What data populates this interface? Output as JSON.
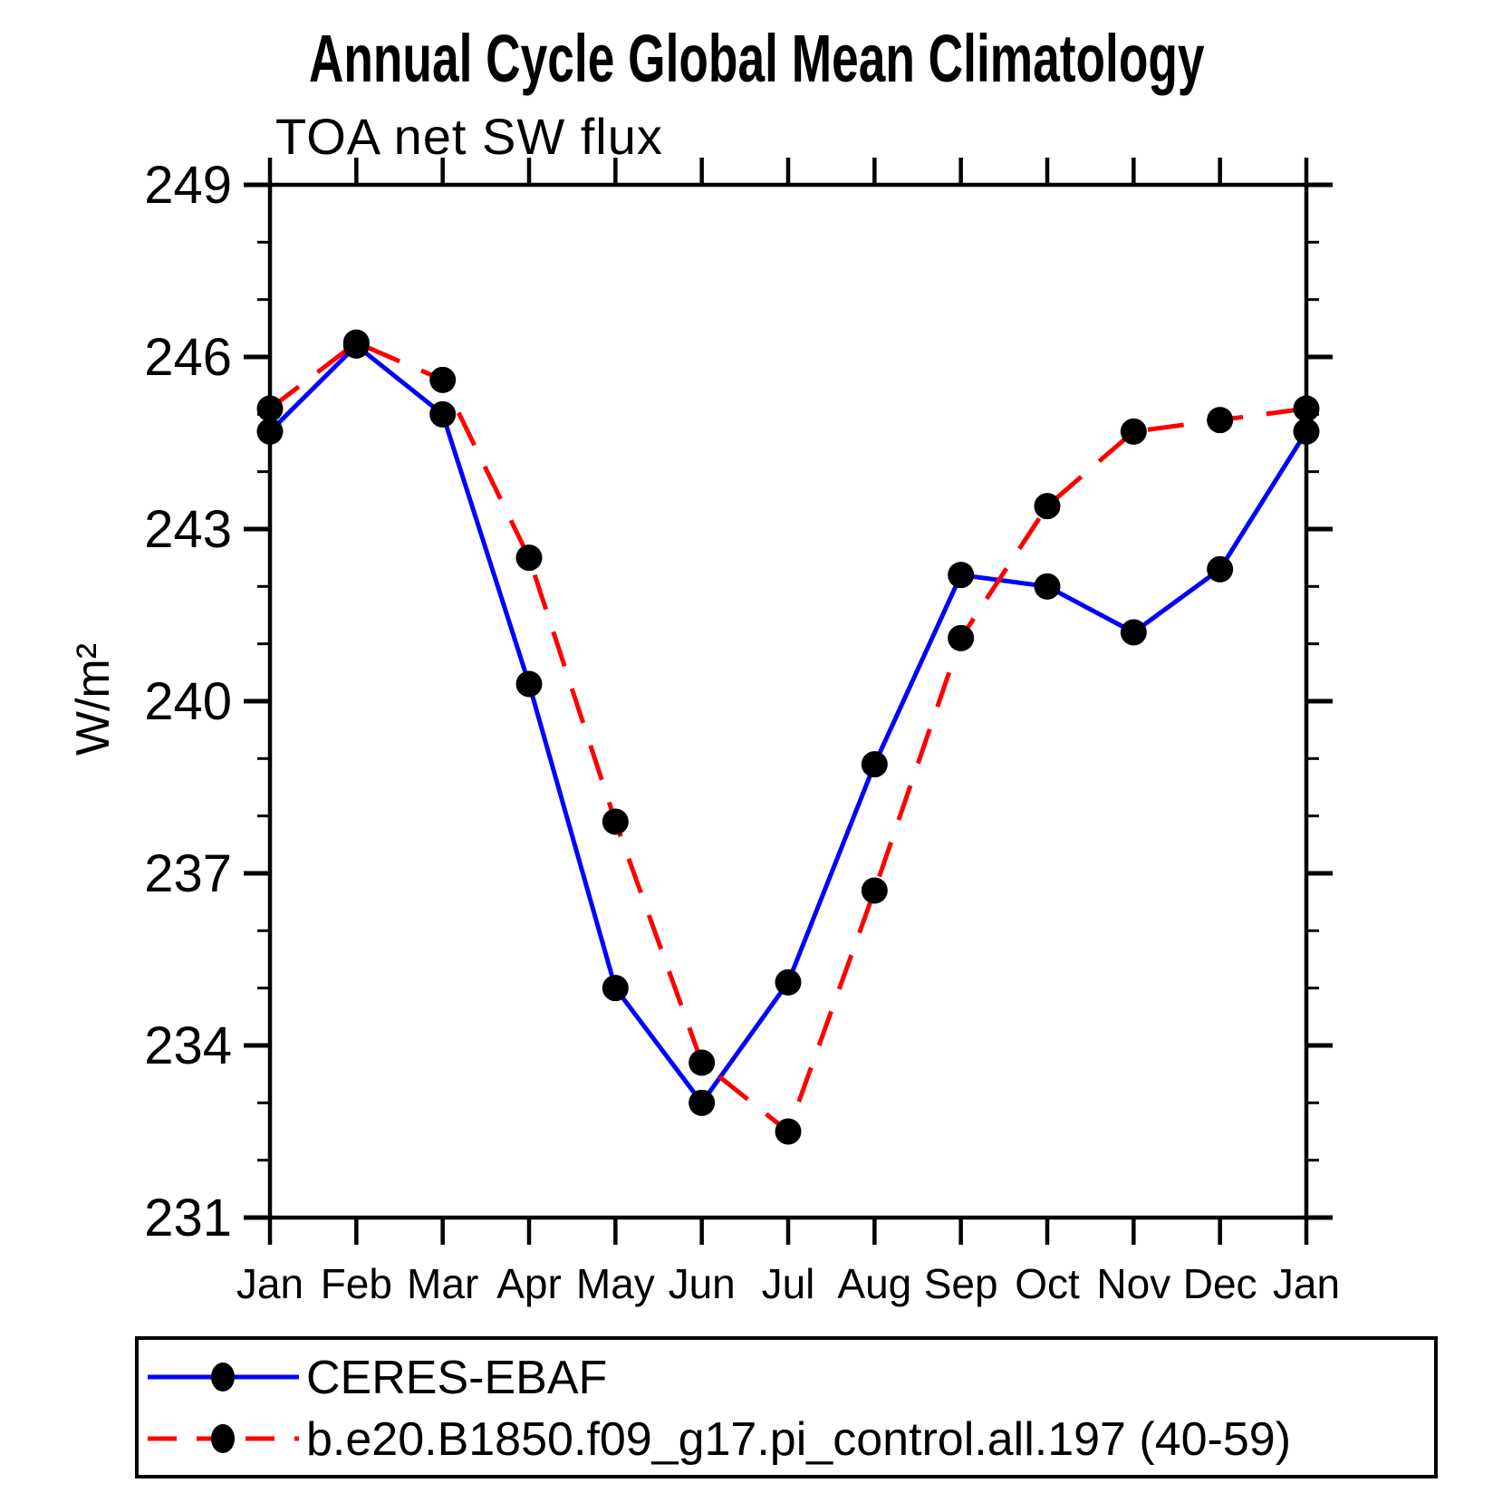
{
  "title": "Annual Cycle Global Mean Climatology",
  "subtitle": "TOA net SW flux",
  "chart_data": {
    "type": "line",
    "categories": [
      "Jan",
      "Feb",
      "Mar",
      "Apr",
      "May",
      "Jun",
      "Jul",
      "Aug",
      "Sep",
      "Oct",
      "Nov",
      "Dec",
      "Jan"
    ],
    "xlabel": "",
    "ylabel": "W/m²",
    "ylim": [
      231,
      249
    ],
    "ytick_major": [
      231,
      234,
      237,
      240,
      243,
      246,
      249
    ],
    "ytick_minor_step": 1,
    "grid": false,
    "legend_position": "bottom-box",
    "marker_color": "#000000",
    "axis_color": "#000000",
    "series": [
      {
        "name": "CERES-EBAF",
        "color": "#0000ff",
        "line_style": "solid",
        "marker": "circle",
        "values": [
          244.7,
          246.2,
          245.0,
          240.3,
          235.0,
          233.0,
          235.1,
          238.9,
          242.2,
          242.0,
          241.2,
          242.3,
          244.7
        ]
      },
      {
        "name": "b.e20.B1850.f09_g17.pi_control.all.197 (40-59)",
        "color": "#ff0000",
        "line_style": "dashed",
        "marker": "circle",
        "values": [
          245.1,
          246.25,
          245.6,
          242.5,
          237.9,
          233.7,
          232.5,
          236.7,
          241.1,
          243.4,
          244.7,
          244.9,
          245.1
        ]
      }
    ]
  }
}
